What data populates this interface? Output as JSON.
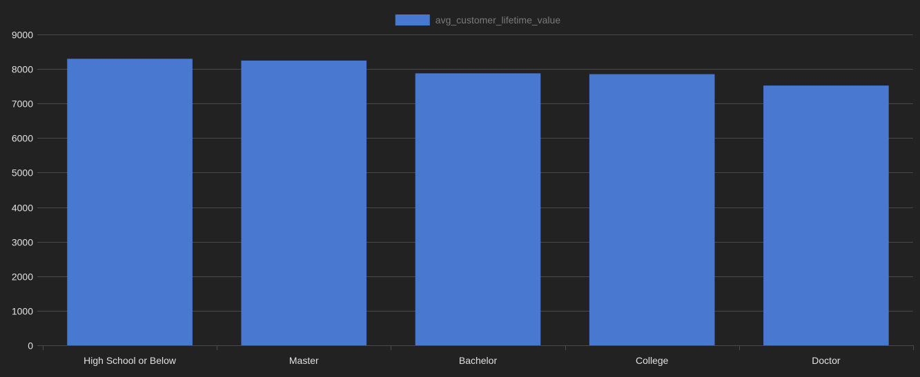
{
  "chart_data": {
    "type": "bar",
    "categories": [
      "High School or Below",
      "Master",
      "Bachelor",
      "College",
      "Doctor"
    ],
    "series": [
      {
        "name": "avg_customer_lifetime_value",
        "values": [
          8296,
          8244,
          7874,
          7851,
          7521
        ],
        "color": "#4878d0"
      }
    ],
    "ylim": [
      0,
      9000
    ],
    "yticks": [
      0,
      1000,
      2000,
      3000,
      4000,
      5000,
      6000,
      7000,
      8000,
      9000
    ],
    "grid": true,
    "legend_position": "top-center",
    "colors": {
      "background": "#222222",
      "grid": "#4a4a4a",
      "tick_text": "#e0e0e0",
      "legend_text": "#7a7a7a"
    }
  }
}
